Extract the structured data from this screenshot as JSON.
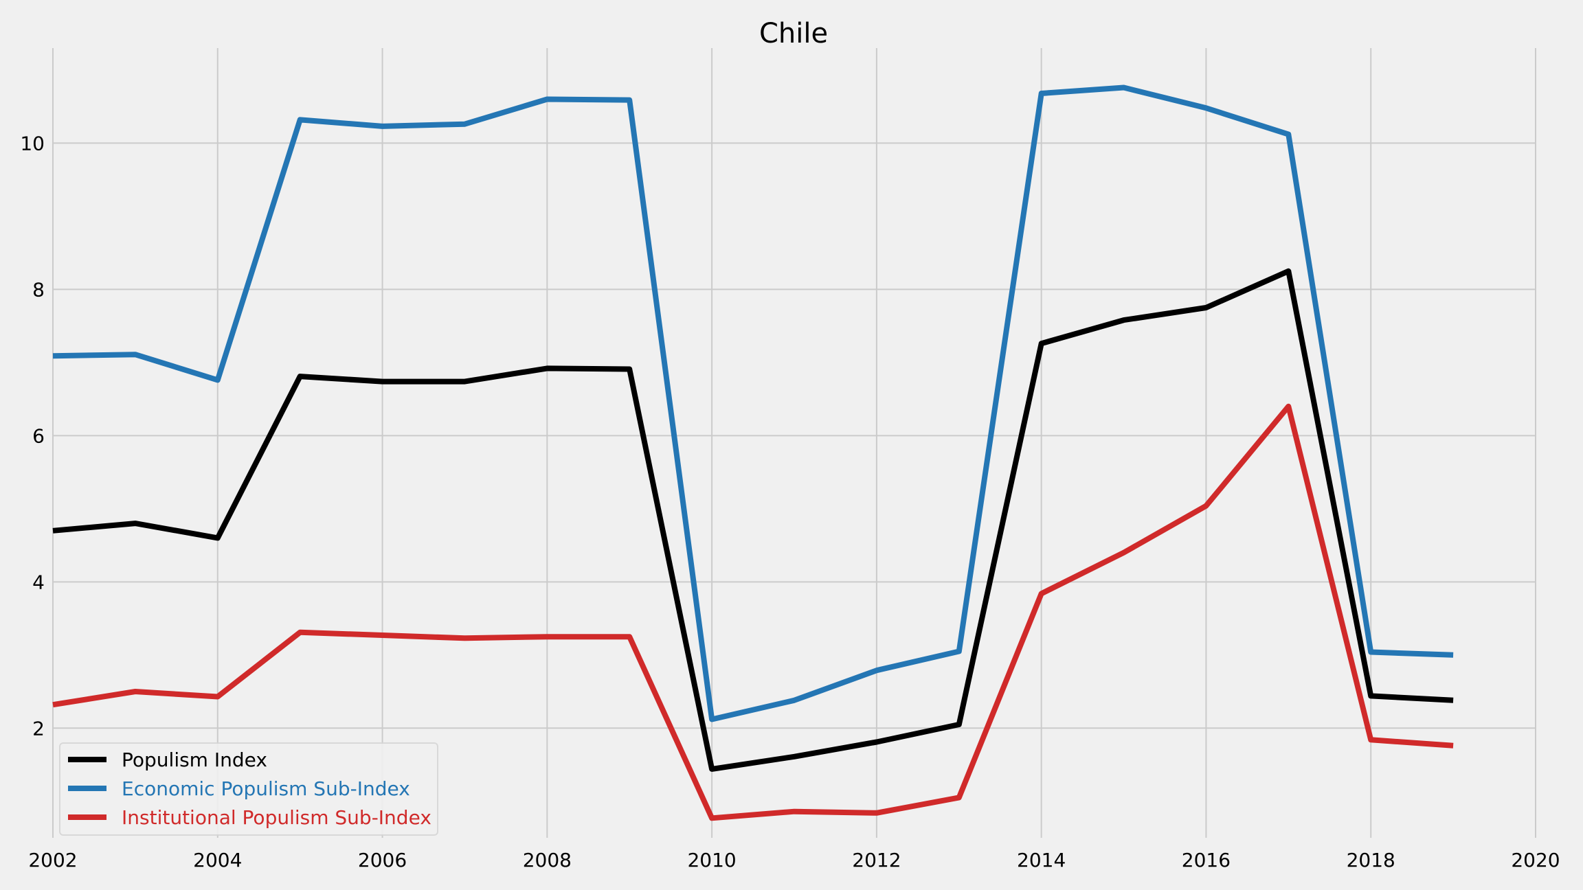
{
  "chart_data": {
    "type": "line",
    "title": "Chile",
    "xlabel": "",
    "ylabel": "",
    "xlim": [
      2002,
      2020
    ],
    "ylim": [
      0.5,
      11.3
    ],
    "x_ticks": [
      2002,
      2004,
      2006,
      2008,
      2010,
      2012,
      2014,
      2016,
      2018,
      2020
    ],
    "y_ticks": [
      2,
      4,
      6,
      8,
      10
    ],
    "grid": true,
    "legend_position": "bottom-left",
    "x": [
      2002,
      2003,
      2004,
      2005,
      2006,
      2007,
      2008,
      2009,
      2010,
      2011,
      2012,
      2013,
      2014,
      2015,
      2016,
      2017,
      2018,
      2019
    ],
    "series": [
      {
        "name": "Populism Index",
        "color": "#000000",
        "values": [
          4.7,
          4.8,
          4.6,
          6.81,
          6.74,
          6.74,
          6.92,
          6.91,
          1.44,
          1.61,
          1.81,
          2.05,
          7.26,
          7.58,
          7.75,
          8.25,
          2.44,
          2.38
        ]
      },
      {
        "name": "Economic Populism Sub-Index",
        "color": "#2476b4",
        "values": [
          7.09,
          7.11,
          6.76,
          10.32,
          10.23,
          10.26,
          10.6,
          10.59,
          2.12,
          2.38,
          2.79,
          3.05,
          10.68,
          10.76,
          10.48,
          10.12,
          3.04,
          3.0
        ]
      },
      {
        "name": "Institutional Populism Sub-Index",
        "color": "#d02a2a",
        "values": [
          2.32,
          2.5,
          2.43,
          3.31,
          3.27,
          3.23,
          3.25,
          3.25,
          0.77,
          0.86,
          0.84,
          1.05,
          3.84,
          4.4,
          5.04,
          6.4,
          1.84,
          1.76
        ]
      }
    ]
  }
}
